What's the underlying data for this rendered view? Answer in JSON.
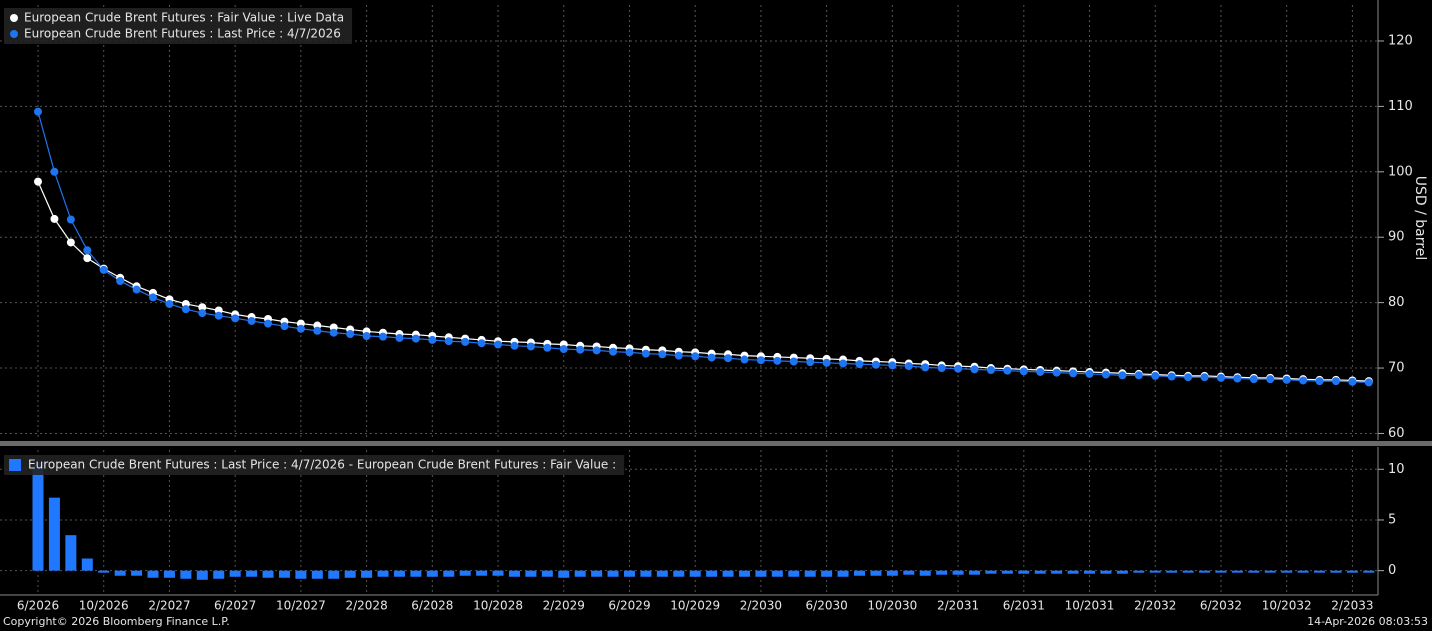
{
  "chart_data": [
    {
      "type": "line",
      "ylabel": "USD / barrel",
      "ylim": [
        59,
        125.5
      ],
      "yticks": [
        60,
        70,
        80,
        90,
        100,
        110,
        120
      ],
      "grid": true,
      "legend": "top-left",
      "series": [
        {
          "name": "European Crude Brent Futures : Fair Value : Live Data",
          "color": "#ffffff",
          "values": [
            98.5,
            92.8,
            89.2,
            86.8,
            85.2,
            83.8,
            82.5,
            81.5,
            80.5,
            79.8,
            79.3,
            78.8,
            78.2,
            77.8,
            77.5,
            77.1,
            76.8,
            76.5,
            76.2,
            75.9,
            75.6,
            75.4,
            75.2,
            75.1,
            74.9,
            74.7,
            74.5,
            74.3,
            74.1,
            74.0,
            73.9,
            73.7,
            73.6,
            73.4,
            73.3,
            73.1,
            73.0,
            72.8,
            72.7,
            72.5,
            72.4,
            72.2,
            72.1,
            71.9,
            71.8,
            71.7,
            71.6,
            71.5,
            71.4,
            71.3,
            71.1,
            71.0,
            70.9,
            70.7,
            70.6,
            70.4,
            70.3,
            70.2,
            70.0,
            69.9,
            69.8,
            69.7,
            69.6,
            69.5,
            69.4,
            69.3,
            69.2,
            69.1,
            69.0,
            68.9,
            68.8,
            68.8,
            68.7,
            68.6,
            68.5,
            68.5,
            68.4,
            68.3,
            68.2,
            68.2,
            68.1,
            68.0
          ]
        },
        {
          "name": "European Crude Brent Futures : Last Price : 4/7/2026",
          "color": "#1f74f0",
          "values": [
            109.2,
            100.0,
            92.7,
            88.0,
            85.0,
            83.3,
            82.0,
            80.8,
            79.8,
            79.0,
            78.4,
            78.0,
            77.6,
            77.2,
            76.8,
            76.4,
            76.0,
            75.7,
            75.4,
            75.2,
            74.9,
            74.8,
            74.6,
            74.5,
            74.3,
            74.1,
            74.0,
            73.8,
            73.6,
            73.4,
            73.3,
            73.1,
            72.9,
            72.8,
            72.7,
            72.5,
            72.4,
            72.2,
            72.1,
            71.9,
            71.8,
            71.6,
            71.5,
            71.3,
            71.2,
            71.1,
            71.0,
            70.9,
            70.8,
            70.7,
            70.6,
            70.5,
            70.4,
            70.3,
            70.1,
            70.0,
            69.9,
            69.8,
            69.7,
            69.6,
            69.5,
            69.4,
            69.3,
            69.2,
            69.1,
            69.0,
            68.9,
            68.9,
            68.8,
            68.7,
            68.6,
            68.6,
            68.5,
            68.4,
            68.3,
            68.3,
            68.2,
            68.1,
            68.0,
            68.0,
            67.9,
            67.8
          ]
        }
      ]
    },
    {
      "type": "bar",
      "ylim": [
        -2.4,
        11.9
      ],
      "yticks": [
        0,
        5,
        10
      ],
      "grid": true,
      "legend": "top-left",
      "categories": [
        "6/2026",
        null,
        null,
        null,
        "10/2026",
        null,
        null,
        null,
        "2/2027",
        null,
        null,
        null,
        "6/2027",
        null,
        null,
        null,
        "10/2027",
        null,
        null,
        null,
        "2/2028",
        null,
        null,
        null,
        "6/2028",
        null,
        null,
        null,
        "10/2028",
        null,
        null,
        null,
        "2/2029",
        null,
        null,
        null,
        "6/2029",
        null,
        null,
        null,
        "10/2029",
        null,
        null,
        null,
        "2/2030",
        null,
        null,
        null,
        "6/2030",
        null,
        null,
        null,
        "10/2030",
        null,
        null,
        null,
        "2/2031",
        null,
        null,
        null,
        "6/2031",
        null,
        null,
        null,
        "10/2031",
        null,
        null,
        null,
        "2/2032",
        null,
        null,
        null,
        "6/2032",
        null,
        null,
        null,
        "10/2032",
        null,
        null,
        null,
        "2/2033",
        null
      ],
      "series": [
        {
          "name": "European Crude Brent Futures : Last Price : 4/7/2026 - European Crude Brent Futures : Fair Value :",
          "color": "#1f78ff",
          "values": [
            10.7,
            7.2,
            3.5,
            1.2,
            -0.2,
            -0.5,
            -0.5,
            -0.7,
            -0.7,
            -0.8,
            -0.9,
            -0.8,
            -0.6,
            -0.6,
            -0.7,
            -0.7,
            -0.8,
            -0.8,
            -0.8,
            -0.7,
            -0.7,
            -0.6,
            -0.6,
            -0.6,
            -0.6,
            -0.6,
            -0.5,
            -0.5,
            -0.5,
            -0.6,
            -0.6,
            -0.6,
            -0.7,
            -0.6,
            -0.6,
            -0.6,
            -0.6,
            -0.6,
            -0.6,
            -0.6,
            -0.6,
            -0.6,
            -0.6,
            -0.6,
            -0.6,
            -0.6,
            -0.6,
            -0.6,
            -0.6,
            -0.6,
            -0.5,
            -0.5,
            -0.5,
            -0.4,
            -0.5,
            -0.4,
            -0.4,
            -0.4,
            -0.3,
            -0.3,
            -0.3,
            -0.3,
            -0.3,
            -0.3,
            -0.3,
            -0.3,
            -0.3,
            -0.2,
            -0.2,
            -0.2,
            -0.2,
            -0.2,
            -0.2,
            -0.2,
            -0.2,
            -0.2,
            -0.2,
            -0.2,
            -0.2,
            -0.2,
            -0.2,
            -0.2
          ]
        }
      ]
    }
  ],
  "footer": {
    "copyright": "Copyright© 2026 Bloomberg Finance L.P.",
    "timestamp": "14-Apr-2026 08:03:53"
  }
}
